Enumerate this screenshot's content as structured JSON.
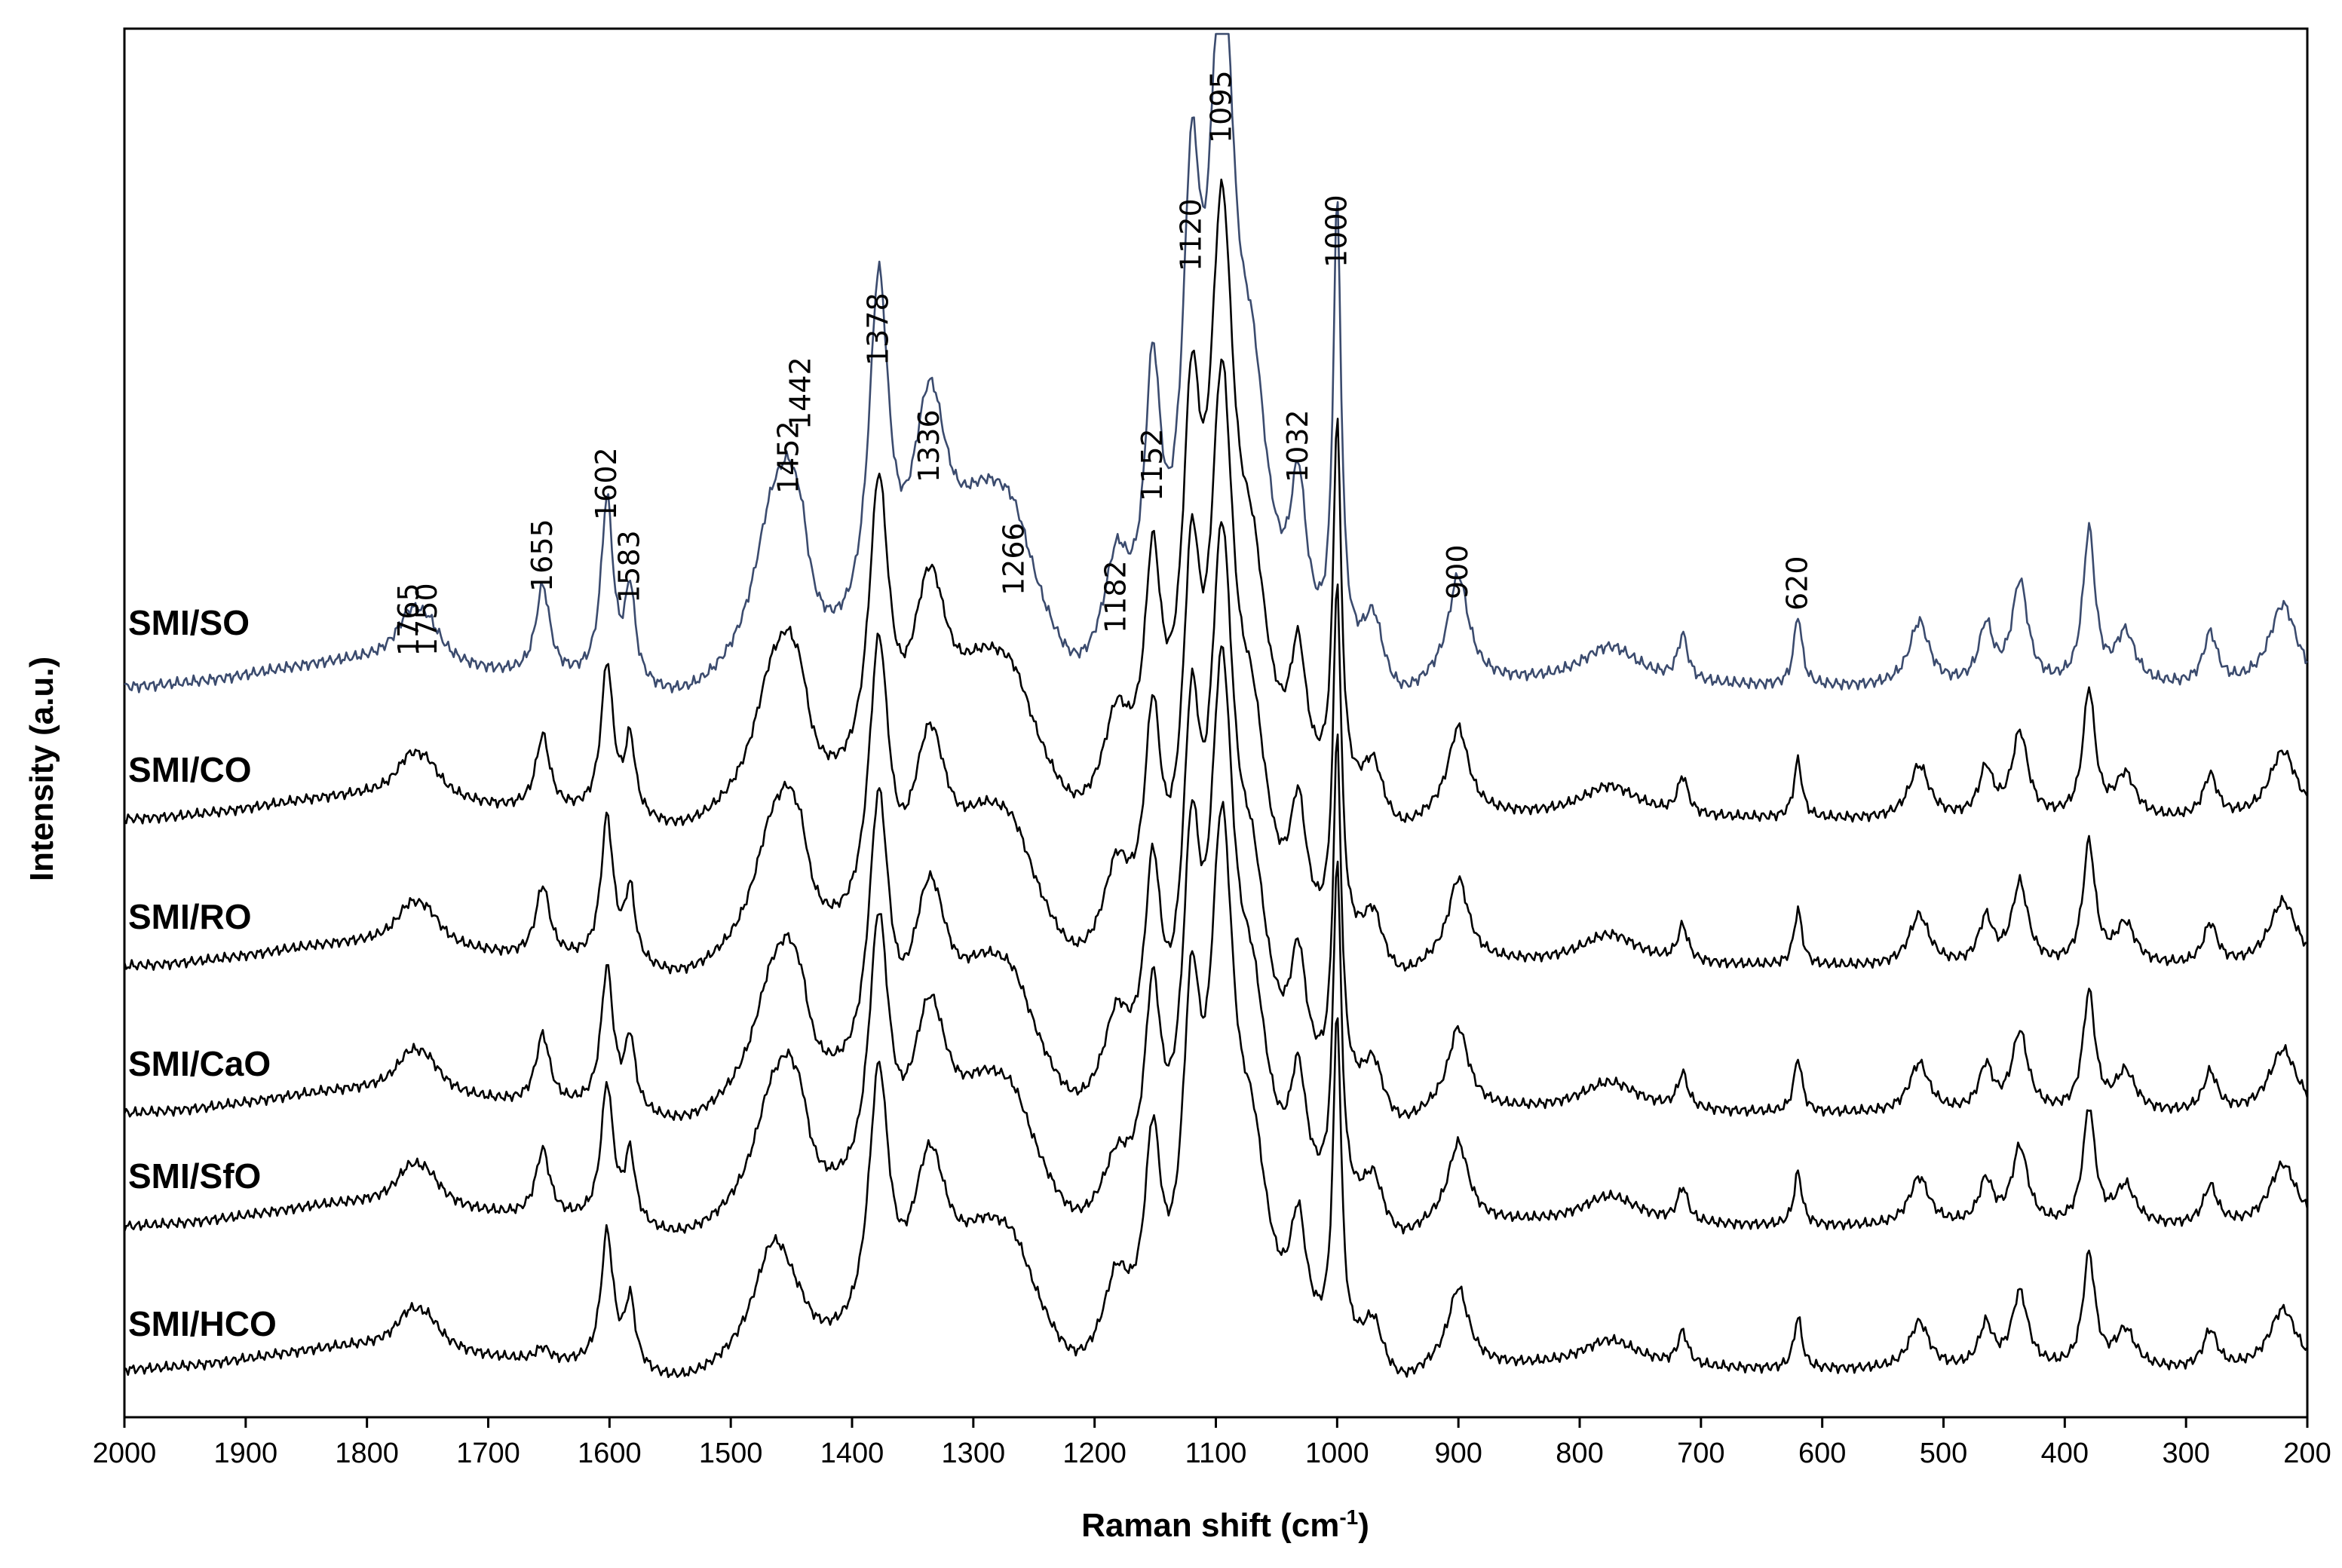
{
  "chart_data": {
    "type": "line",
    "title": "",
    "xlabel": "Raman shift (cm",
    "xlabel_sup": "-1",
    "xlabel_end": ")",
    "ylabel": "Intensity (a.u.)",
    "xlim": [
      2000,
      200
    ],
    "x_reversed": true,
    "grid": false,
    "xticks": [
      2000,
      1900,
      1800,
      1700,
      1600,
      1500,
      1400,
      1300,
      1200,
      1100,
      1000,
      900,
      800,
      700,
      600,
      500,
      400,
      300,
      200
    ],
    "peak_labels": [
      "1765",
      "1750",
      "1655",
      "1602",
      "1583",
      "1452",
      "1442",
      "1378",
      "1336",
      "1266",
      "1182",
      "1152",
      "1120",
      "1095",
      "1032",
      "1000",
      "900",
      "620"
    ],
    "peaks_cm1": [
      1765,
      1750,
      1655,
      1602,
      1583,
      1452,
      1442,
      1378,
      1336,
      1266,
      1182,
      1152,
      1120,
      1095,
      1032,
      1000,
      900,
      620
    ],
    "bands": [
      {
        "x": 1765,
        "w": 14,
        "h": 0.06
      },
      {
        "x": 1750,
        "w": 14,
        "h": 0.05
      },
      {
        "x": 1655,
        "w": 7,
        "h": 0.14
      },
      {
        "x": 1602,
        "w": 6,
        "h": 0.28
      },
      {
        "x": 1583,
        "w": 5,
        "h": 0.14
      },
      {
        "x": 1465,
        "w": 20,
        "h": 0.24
      },
      {
        "x": 1452,
        "w": 10,
        "h": 0.12
      },
      {
        "x": 1442,
        "w": 8,
        "h": 0.1
      },
      {
        "x": 1378,
        "w": 10,
        "h": 0.55
      },
      {
        "x": 1336,
        "w": 18,
        "h": 0.35
      },
      {
        "x": 1290,
        "w": 35,
        "h": 0.22
      },
      {
        "x": 1266,
        "w": 20,
        "h": 0.1
      },
      {
        "x": 1182,
        "w": 12,
        "h": 0.14
      },
      {
        "x": 1152,
        "w": 8,
        "h": 0.4
      },
      {
        "x": 1120,
        "w": 9,
        "h": 0.62
      },
      {
        "x": 1095,
        "w": 12,
        "h": 1.0
      },
      {
        "x": 1070,
        "w": 16,
        "h": 0.35
      },
      {
        "x": 1032,
        "w": 8,
        "h": 0.24
      },
      {
        "x": 1000,
        "w": 4,
        "h": 0.7
      },
      {
        "x": 970,
        "w": 10,
        "h": 0.1
      },
      {
        "x": 900,
        "w": 10,
        "h": 0.16
      },
      {
        "x": 775,
        "w": 30,
        "h": 0.06
      },
      {
        "x": 715,
        "w": 5,
        "h": 0.07
      },
      {
        "x": 620,
        "w": 4,
        "h": 0.11
      },
      {
        "x": 520,
        "w": 10,
        "h": 0.1
      },
      {
        "x": 465,
        "w": 7,
        "h": 0.09
      },
      {
        "x": 437,
        "w": 8,
        "h": 0.16
      },
      {
        "x": 380,
        "w": 6,
        "h": 0.24
      },
      {
        "x": 350,
        "w": 10,
        "h": 0.08
      },
      {
        "x": 280,
        "w": 7,
        "h": 0.08
      },
      {
        "x": 220,
        "w": 14,
        "h": 0.13
      }
    ],
    "series": [
      {
        "name": "SMI/SO",
        "color": "#3b4b6e"
      },
      {
        "name": "SMI/CO",
        "color": "#000000"
      },
      {
        "name": "SMI/RO",
        "color": "#000000"
      },
      {
        "name": "SMI/CaO",
        "color": "#000000"
      },
      {
        "name": "SMI/SfO",
        "color": "#000000"
      },
      {
        "name": "SMI/HCO",
        "color": "#000000"
      }
    ]
  }
}
